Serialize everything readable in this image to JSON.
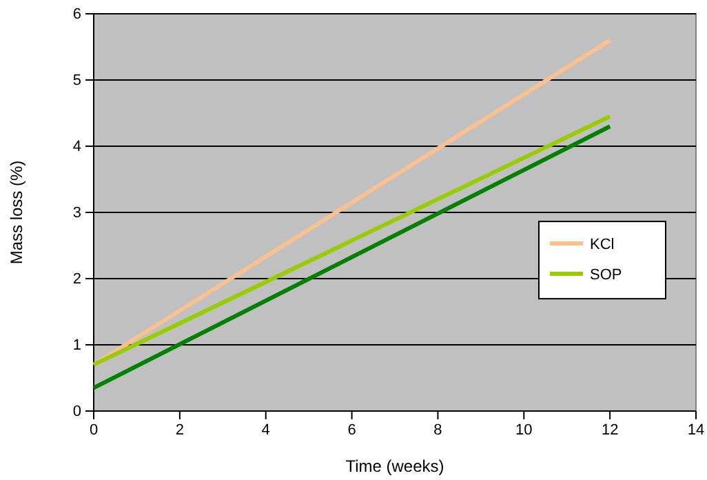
{
  "chart_data": {
    "type": "line",
    "xlabel": "Time (weeks)",
    "ylabel": "Mass loss (%)",
    "x": [
      0,
      12
    ],
    "series": [
      {
        "name": "KCl",
        "color": "#fac090",
        "values": [
          0.7,
          5.6
        ]
      },
      {
        "name": "SOP",
        "color": "#99cc00",
        "values": [
          0.7,
          4.45
        ]
      },
      {
        "color": "#008000",
        "values": [
          0.35,
          4.3
        ]
      }
    ],
    "xlim": [
      0,
      14
    ],
    "xticks": [
      0,
      2,
      4,
      6,
      8,
      10,
      12,
      14
    ],
    "ylim": [
      0,
      6
    ],
    "yticks": [
      0,
      1,
      2,
      3,
      4,
      5,
      6
    ],
    "grid": "y",
    "legend": "right",
    "marker": "none",
    "line_style": "solid"
  }
}
